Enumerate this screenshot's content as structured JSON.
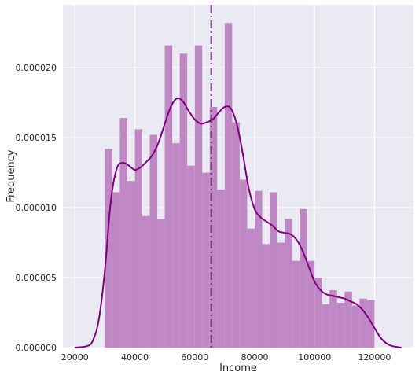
{
  "chart_data": {
    "type": "histogram",
    "xlabel": "Income",
    "ylabel": "Frequency",
    "xlim": [
      16000,
      133000
    ],
    "ylim": [
      0,
      2.45e-05
    ],
    "xticks": [
      20000,
      40000,
      60000,
      80000,
      100000,
      120000
    ],
    "yticks": [
      0,
      5e-06,
      1e-05,
      1.5e-05,
      2e-05
    ],
    "ytick_labels": [
      "0.000000",
      "0.000005",
      "0.000010",
      "0.000015",
      "0.000020"
    ],
    "grid": true,
    "background": "#eaeaf2",
    "bar_color": "#bf87c3",
    "kde_color": "#800080",
    "mean_line_color": "#5c1d63",
    "bins": [
      {
        "x0": 30000,
        "x1": 32500,
        "y": 1.42e-05
      },
      {
        "x0": 32500,
        "x1": 35000,
        "y": 1.11e-05
      },
      {
        "x0": 35000,
        "x1": 37500,
        "y": 1.64e-05
      },
      {
        "x0": 37500,
        "x1": 40000,
        "y": 1.19e-05
      },
      {
        "x0": 40000,
        "x1": 42500,
        "y": 1.56e-05
      },
      {
        "x0": 42500,
        "x1": 45000,
        "y": 9.4e-06
      },
      {
        "x0": 45000,
        "x1": 47500,
        "y": 1.52e-05
      },
      {
        "x0": 47500,
        "x1": 50000,
        "y": 9.2e-06
      },
      {
        "x0": 50000,
        "x1": 52500,
        "y": 2.16e-05
      },
      {
        "x0": 52500,
        "x1": 55000,
        "y": 1.46e-05
      },
      {
        "x0": 55000,
        "x1": 57500,
        "y": 2.1e-05
      },
      {
        "x0": 57500,
        "x1": 60000,
        "y": 1.3e-05
      },
      {
        "x0": 60000,
        "x1": 62500,
        "y": 2.16e-05
      },
      {
        "x0": 62500,
        "x1": 65000,
        "y": 1.25e-05
      },
      {
        "x0": 65000,
        "x1": 67500,
        "y": 1.72e-05
      },
      {
        "x0": 67500,
        "x1": 70000,
        "y": 1.13e-05
      },
      {
        "x0": 70000,
        "x1": 72500,
        "y": 2.32e-05
      },
      {
        "x0": 72500,
        "x1": 75000,
        "y": 1.61e-05
      },
      {
        "x0": 75000,
        "x1": 77500,
        "y": 1.2e-05
      },
      {
        "x0": 77500,
        "x1": 80000,
        "y": 8.5e-06
      },
      {
        "x0": 80000,
        "x1": 82500,
        "y": 1.12e-05
      },
      {
        "x0": 82500,
        "x1": 85000,
        "y": 7.4e-06
      },
      {
        "x0": 85000,
        "x1": 87500,
        "y": 1.11e-05
      },
      {
        "x0": 87500,
        "x1": 90000,
        "y": 7.5e-06
      },
      {
        "x0": 90000,
        "x1": 92500,
        "y": 9.2e-06
      },
      {
        "x0": 92500,
        "x1": 95000,
        "y": 6.2e-06
      },
      {
        "x0": 95000,
        "x1": 97500,
        "y": 9.9e-06
      },
      {
        "x0": 97500,
        "x1": 100000,
        "y": 6.2e-06
      },
      {
        "x0": 100000,
        "x1": 102500,
        "y": 5e-06
      },
      {
        "x0": 102500,
        "x1": 105000,
        "y": 3.1e-06
      },
      {
        "x0": 105000,
        "x1": 107500,
        "y": 4.1e-06
      },
      {
        "x0": 107500,
        "x1": 110000,
        "y": 3.2e-06
      },
      {
        "x0": 110000,
        "x1": 112500,
        "y": 4e-06
      },
      {
        "x0": 112500,
        "x1": 115000,
        "y": 3e-06
      },
      {
        "x0": 115000,
        "x1": 117500,
        "y": 3.5e-06
      },
      {
        "x0": 117500,
        "x1": 120000,
        "y": 3.4e-06
      }
    ],
    "kde": {
      "x": [
        20000,
        24000,
        26000,
        28000,
        30000,
        32000,
        34000,
        36000,
        38000,
        40000,
        42000,
        44000,
        46000,
        48000,
        50000,
        52000,
        54000,
        56000,
        58000,
        60000,
        62000,
        64000,
        66000,
        68000,
        70000,
        72000,
        74000,
        76000,
        78000,
        80000,
        82000,
        84000,
        86000,
        88000,
        90000,
        92000,
        94000,
        96000,
        98000,
        100000,
        102000,
        104000,
        106000,
        108000,
        110000,
        112000,
        114000,
        116000,
        118000,
        120000,
        122000,
        124000,
        126000,
        129000
      ],
      "y": [
        0,
        1e-07,
        5e-07,
        2e-06,
        5.5e-06,
        1.05e-05,
        1.28e-05,
        1.32e-05,
        1.3e-05,
        1.27e-05,
        1.29e-05,
        1.33e-05,
        1.38e-05,
        1.47e-05,
        1.6e-05,
        1.72e-05,
        1.78e-05,
        1.76e-05,
        1.69e-05,
        1.63e-05,
        1.6e-05,
        1.61e-05,
        1.63e-05,
        1.68e-05,
        1.72e-05,
        1.71e-05,
        1.6e-05,
        1.39e-05,
        1.14e-05,
        9.9e-06,
        9.3e-06,
        9e-06,
        8.7e-06,
        8.3e-06,
        8.2e-06,
        8.1e-06,
        7.7e-06,
        6.9e-06,
        5.8e-06,
        4.7e-06,
        4.1e-06,
        3.8e-06,
        3.7e-06,
        3.6e-06,
        3.5e-06,
        3.3e-06,
        3.1e-06,
        2.7e-06,
        2.1e-06,
        1.4e-06,
        7e-07,
        3e-07,
        1e-07,
        0
      ]
    },
    "mean_line": {
      "x": 65500,
      "style": "dash-dot"
    }
  }
}
